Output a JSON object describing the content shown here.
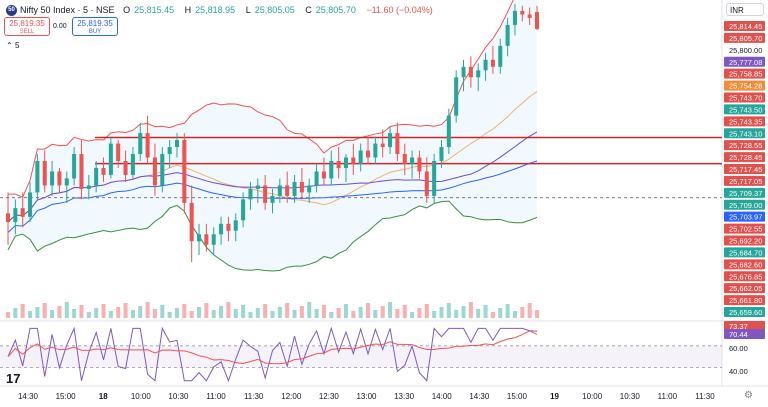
{
  "header": {
    "symbol": "Nifty 50 Index · 5 · NSE",
    "open_label": "O",
    "open": "25,815.45",
    "high_label": "H",
    "high": "25,818.95",
    "low_label": "L",
    "low": "25,805.05",
    "close_label": "C",
    "close": "25,805.70",
    "change": "−11.60 (−0.04%)"
  },
  "trade": {
    "sell_price": "25,819.35",
    "sell_label": "SELL",
    "spread": "0.00",
    "buy_price": "25,819.35",
    "buy_label": "BUY"
  },
  "currency": "INR",
  "indicators_count": "5",
  "icons": {
    "logo": "nifty-logo-icon",
    "collapse": "chevron-up-icon",
    "settings": "gear-icon",
    "brand": "tradingview-logo-icon"
  },
  "colors": {
    "up": "#26a69a",
    "down": "#ef5350",
    "bb": "#ef5350",
    "ma_purple": "#6a4cd1",
    "ma_blue": "#2962ff",
    "ma_orange": "#f0b070",
    "ma_green": "#388e3c",
    "rsi": "#7e57c2"
  },
  "time_labels": [
    "14:30",
    "15:00",
    "18",
    "10:00",
    "10:30",
    "11:00",
    "11:30",
    "12:00",
    "12:30",
    "13:00",
    "13:30",
    "14:00",
    "14:30",
    "15:00",
    "19",
    "10:00",
    "10:30",
    "11:00",
    "11:30"
  ],
  "price_tags": [
    {
      "text": "25,814.45",
      "kind": "down"
    },
    {
      "text": "25,805.70",
      "kind": "down"
    },
    {
      "text": "25,800.00",
      "kind": "plain"
    },
    {
      "text": "25,777.08",
      "kind": "purple"
    },
    {
      "text": "25,758.85",
      "kind": "down"
    },
    {
      "text": "25,754.28",
      "kind": "orange"
    },
    {
      "text": "25,743.70",
      "kind": "down"
    },
    {
      "text": "25,743.50",
      "kind": "up"
    },
    {
      "text": "25,743.35",
      "kind": "down"
    },
    {
      "text": "25,743.10",
      "kind": "up"
    },
    {
      "text": "25,728.55",
      "kind": "down"
    },
    {
      "text": "25,728.45",
      "kind": "down"
    },
    {
      "text": "25,717.45",
      "kind": "down"
    },
    {
      "text": "25,717.05",
      "kind": "down"
    },
    {
      "text": "25,709.37",
      "kind": "up"
    },
    {
      "text": "25,709.00",
      "kind": "up"
    },
    {
      "text": "25,703.97",
      "kind": "blue"
    },
    {
      "text": "25,702.55",
      "kind": "down"
    },
    {
      "text": "25,692.20",
      "kind": "down"
    },
    {
      "text": "25,684.70",
      "kind": "up"
    },
    {
      "text": "25,682.60",
      "kind": "down"
    },
    {
      "text": "25,676.85",
      "kind": "down"
    },
    {
      "text": "25,662.05",
      "kind": "down"
    },
    {
      "text": "25,661.80",
      "kind": "down"
    },
    {
      "text": "25,659.60",
      "kind": "up"
    }
  ],
  "rsi_labels": [
    {
      "text": "73.37",
      "kind": "down"
    },
    {
      "text": "70.44",
      "kind": "purple"
    },
    {
      "text": "60.00",
      "kind": "plain"
    },
    {
      "text": "40.00",
      "kind": "plain"
    }
  ],
  "chart_data": {
    "type": "candlestick",
    "currency": "INR",
    "price_range": [
      25640,
      25820
    ],
    "horizontal_levels": [
      25743.5,
      25728.5,
      25709.0
    ],
    "candles": [
      {
        "o": 25700,
        "h": 25712,
        "l": 25682,
        "c": 25695
      },
      {
        "o": 25695,
        "h": 25708,
        "l": 25688,
        "c": 25703
      },
      {
        "o": 25703,
        "h": 25712,
        "l": 25692,
        "c": 25698
      },
      {
        "o": 25698,
        "h": 25718,
        "l": 25695,
        "c": 25712
      },
      {
        "o": 25712,
        "h": 25734,
        "l": 25708,
        "c": 25730
      },
      {
        "o": 25730,
        "h": 25736,
        "l": 25712,
        "c": 25716
      },
      {
        "o": 25716,
        "h": 25730,
        "l": 25710,
        "c": 25724
      },
      {
        "o": 25724,
        "h": 25726,
        "l": 25712,
        "c": 25716
      },
      {
        "o": 25716,
        "h": 25724,
        "l": 25706,
        "c": 25720
      },
      {
        "o": 25720,
        "h": 25738,
        "l": 25716,
        "c": 25734
      },
      {
        "o": 25734,
        "h": 25742,
        "l": 25708,
        "c": 25714
      },
      {
        "o": 25714,
        "h": 25722,
        "l": 25708,
        "c": 25716
      },
      {
        "o": 25716,
        "h": 25730,
        "l": 25712,
        "c": 25726
      },
      {
        "o": 25726,
        "h": 25732,
        "l": 25718,
        "c": 25722
      },
      {
        "o": 25722,
        "h": 25744,
        "l": 25720,
        "c": 25740
      },
      {
        "o": 25740,
        "h": 25742,
        "l": 25726,
        "c": 25730
      },
      {
        "o": 25730,
        "h": 25736,
        "l": 25718,
        "c": 25722
      },
      {
        "o": 25722,
        "h": 25738,
        "l": 25720,
        "c": 25734
      },
      {
        "o": 25734,
        "h": 25752,
        "l": 25730,
        "c": 25746
      },
      {
        "o": 25746,
        "h": 25756,
        "l": 25728,
        "c": 25732
      },
      {
        "o": 25732,
        "h": 25740,
        "l": 25710,
        "c": 25716
      },
      {
        "o": 25716,
        "h": 25738,
        "l": 25712,
        "c": 25734
      },
      {
        "o": 25734,
        "h": 25742,
        "l": 25726,
        "c": 25738
      },
      {
        "o": 25738,
        "h": 25746,
        "l": 25732,
        "c": 25742
      },
      {
        "o": 25742,
        "h": 25746,
        "l": 25700,
        "c": 25706
      },
      {
        "o": 25706,
        "h": 25716,
        "l": 25672,
        "c": 25684
      },
      {
        "o": 25684,
        "h": 25694,
        "l": 25676,
        "c": 25688
      },
      {
        "o": 25688,
        "h": 25694,
        "l": 25678,
        "c": 25682
      },
      {
        "o": 25682,
        "h": 25692,
        "l": 25676,
        "c": 25688
      },
      {
        "o": 25688,
        "h": 25698,
        "l": 25682,
        "c": 25694
      },
      {
        "o": 25694,
        "h": 25698,
        "l": 25684,
        "c": 25690
      },
      {
        "o": 25690,
        "h": 25700,
        "l": 25684,
        "c": 25696
      },
      {
        "o": 25696,
        "h": 25712,
        "l": 25692,
        "c": 25708
      },
      {
        "o": 25708,
        "h": 25718,
        "l": 25702,
        "c": 25714
      },
      {
        "o": 25714,
        "h": 25720,
        "l": 25706,
        "c": 25716
      },
      {
        "o": 25716,
        "h": 25722,
        "l": 25702,
        "c": 25706
      },
      {
        "o": 25706,
        "h": 25714,
        "l": 25700,
        "c": 25710
      },
      {
        "o": 25710,
        "h": 25720,
        "l": 25706,
        "c": 25716
      },
      {
        "o": 25716,
        "h": 25724,
        "l": 25706,
        "c": 25710
      },
      {
        "o": 25710,
        "h": 25722,
        "l": 25706,
        "c": 25718
      },
      {
        "o": 25718,
        "h": 25726,
        "l": 25708,
        "c": 25712
      },
      {
        "o": 25712,
        "h": 25720,
        "l": 25706,
        "c": 25716
      },
      {
        "o": 25716,
        "h": 25728,
        "l": 25712,
        "c": 25724
      },
      {
        "o": 25724,
        "h": 25732,
        "l": 25716,
        "c": 25720
      },
      {
        "o": 25720,
        "h": 25736,
        "l": 25716,
        "c": 25730
      },
      {
        "o": 25730,
        "h": 25738,
        "l": 25720,
        "c": 25726
      },
      {
        "o": 25726,
        "h": 25734,
        "l": 25718,
        "c": 25732
      },
      {
        "o": 25732,
        "h": 25740,
        "l": 25722,
        "c": 25728
      },
      {
        "o": 25728,
        "h": 25740,
        "l": 25724,
        "c": 25736
      },
      {
        "o": 25736,
        "h": 25744,
        "l": 25728,
        "c": 25732
      },
      {
        "o": 25732,
        "h": 25744,
        "l": 25728,
        "c": 25740
      },
      {
        "o": 25740,
        "h": 25748,
        "l": 25732,
        "c": 25738
      },
      {
        "o": 25738,
        "h": 25750,
        "l": 25734,
        "c": 25746
      },
      {
        "o": 25746,
        "h": 25752,
        "l": 25730,
        "c": 25734
      },
      {
        "o": 25734,
        "h": 25740,
        "l": 25722,
        "c": 25728
      },
      {
        "o": 25728,
        "h": 25736,
        "l": 25720,
        "c": 25732
      },
      {
        "o": 25732,
        "h": 25736,
        "l": 25720,
        "c": 25724
      },
      {
        "o": 25724,
        "h": 25732,
        "l": 25706,
        "c": 25710
      },
      {
        "o": 25710,
        "h": 25734,
        "l": 25706,
        "c": 25730
      },
      {
        "o": 25730,
        "h": 25742,
        "l": 25726,
        "c": 25738
      },
      {
        "o": 25738,
        "h": 25760,
        "l": 25734,
        "c": 25756
      },
      {
        "o": 25756,
        "h": 25782,
        "l": 25752,
        "c": 25778
      },
      {
        "o": 25778,
        "h": 25788,
        "l": 25770,
        "c": 25784
      },
      {
        "o": 25784,
        "h": 25790,
        "l": 25772,
        "c": 25778
      },
      {
        "o": 25778,
        "h": 25786,
        "l": 25770,
        "c": 25782
      },
      {
        "o": 25782,
        "h": 25792,
        "l": 25776,
        "c": 25788
      },
      {
        "o": 25788,
        "h": 25796,
        "l": 25780,
        "c": 25784
      },
      {
        "o": 25784,
        "h": 25800,
        "l": 25780,
        "c": 25796
      },
      {
        "o": 25796,
        "h": 25812,
        "l": 25790,
        "c": 25808
      },
      {
        "o": 25808,
        "h": 25820,
        "l": 25802,
        "c": 25816
      },
      {
        "o": 25816,
        "h": 25819,
        "l": 25810,
        "c": 25814
      },
      {
        "o": 25814,
        "h": 25818,
        "l": 25808,
        "c": 25812
      },
      {
        "o": 25815.45,
        "h": 25818.95,
        "l": 25805.05,
        "c": 25805.7
      }
    ],
    "rsi_levels": [
      60,
      40
    ],
    "rsi_last": 73.37,
    "rsi_ma_last": 70.44
  }
}
